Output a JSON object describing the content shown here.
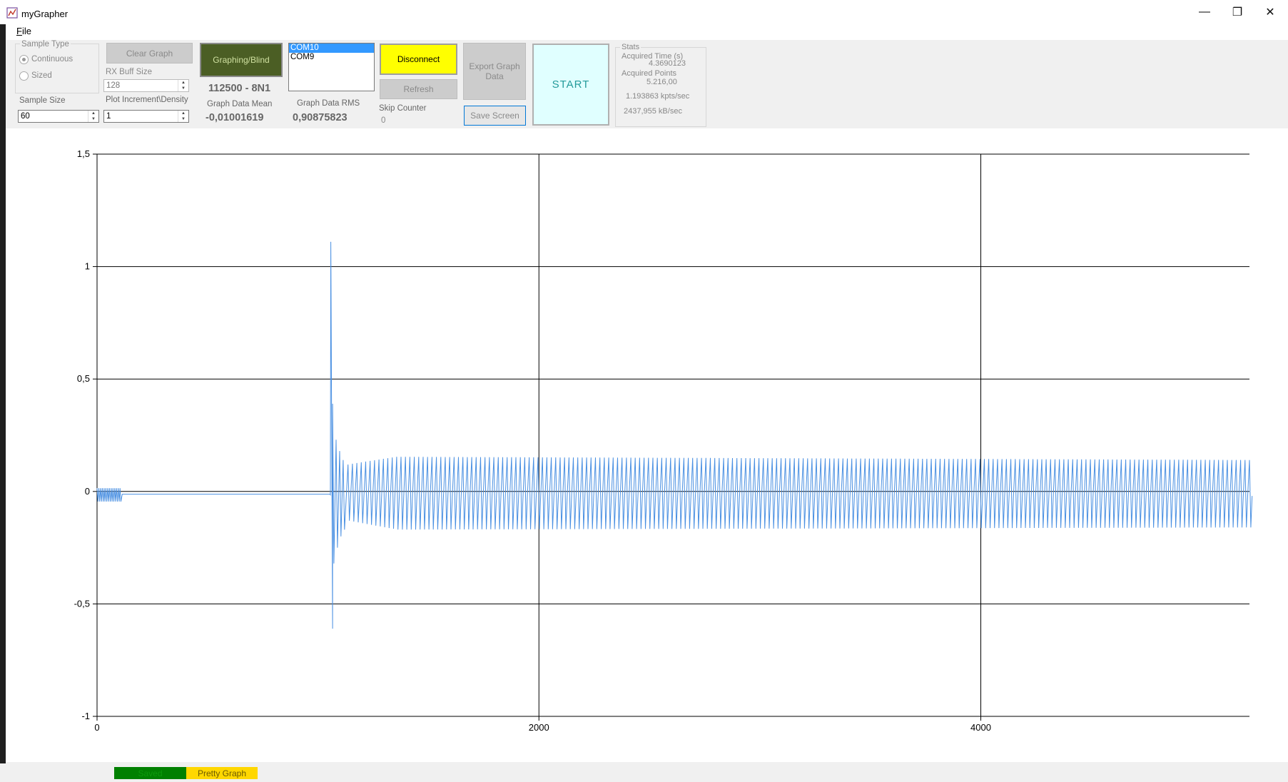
{
  "window": {
    "title": "myGrapher",
    "minimize_glyph": "—",
    "restore_glyph": "❐",
    "close_glyph": "✕"
  },
  "menu": {
    "file_underline": "F",
    "file_rest": "ile"
  },
  "sample_type": {
    "legend": "Sample Type",
    "continuous": "Continuous",
    "sized": "Sized",
    "selected": "Continuous"
  },
  "sample_size": {
    "label": "Sample Size",
    "value": "60"
  },
  "clear_graph": "Clear Graph",
  "rx_buff": {
    "label": "RX Buff Size",
    "value": "128"
  },
  "plot_increment": {
    "label": "Plot Increment\\Density",
    "value": "1"
  },
  "graphing_blind": "Graphing/Blind",
  "serial_config": "112500 - 8N1",
  "mean": {
    "label": "Graph Data Mean",
    "value": "-0,01001619"
  },
  "rms": {
    "label": "Graph Data RMS",
    "value": "0,90875823"
  },
  "com_ports": {
    "items": [
      "COM10",
      "COM9"
    ],
    "selected": "COM10"
  },
  "disconnect": "Disconnect",
  "refresh": "Refresh",
  "skip_counter": {
    "label": "Skip Counter",
    "value": "0"
  },
  "export_line1": "Export Graph",
  "export_line2": "Data",
  "save_screen": "Save Screen",
  "start": "START",
  "stats": {
    "legend": "Stats",
    "acq_time_label": "Acquired Time (s)",
    "acq_time_value": "4.3690123",
    "acq_points_label": "Acquired Points",
    "acq_points_value": "5.216,00",
    "kpts": "1.193863 kpts/sec",
    "kbs": "2437,955 kB/sec"
  },
  "status": {
    "saved": "Saved",
    "pretty": "Pretty Graph"
  },
  "colors": {
    "graphing_bg": "#4b5e24",
    "disconnect_bg": "#ffff00",
    "start_bg": "#e0ffff",
    "start_text": "#239a9a",
    "series": "#4a90e2",
    "saved_bg": "#008000",
    "pretty_bg": "#ffd700"
  },
  "chart_data": {
    "type": "line",
    "xlim": [
      0,
      5216
    ],
    "ylim": [
      -1,
      1.5
    ],
    "x_ticks": [
      0,
      2000,
      4000
    ],
    "x_tick_labels": [
      "0",
      "2000",
      "4000"
    ],
    "y_ticks": [
      -1,
      -0.5,
      0,
      0.5,
      1,
      1.5
    ],
    "y_tick_labels": [
      "-1",
      "-0,5",
      "0",
      "0,5",
      "1",
      "1,5"
    ],
    "grid": true,
    "series": [
      {
        "baseline_until": 1055,
        "baseline_value": -0.015,
        "startup_ripple": {
          "x_end": 110,
          "amplitude": 0.03
        },
        "impulse_x": 1058,
        "impulse_peak": 1.11,
        "impulse_trough": -0.61,
        "ringing": [
          {
            "x": 1072,
            "hi": 0.39,
            "lo": -0.32
          },
          {
            "x": 1088,
            "hi": 0.23,
            "lo": -0.25
          },
          {
            "x": 1104,
            "hi": 0.18,
            "lo": -0.2
          },
          {
            "x": 1120,
            "hi": 0.14,
            "lo": -0.17
          }
        ],
        "oscillation": {
          "x_start": 1136,
          "period": 20,
          "hi_start": 0.12,
          "hi_steady": 0.155,
          "lo_start": -0.13,
          "lo_steady": -0.17,
          "hi_end": 0.14,
          "lo_end": -0.16,
          "x_end": 5216
        }
      }
    ]
  }
}
